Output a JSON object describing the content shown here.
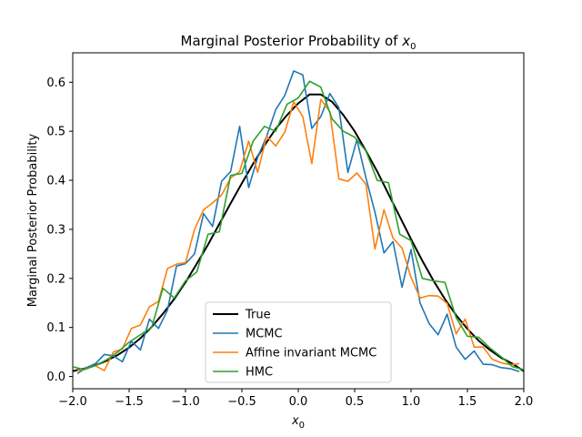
{
  "chart_data": {
    "type": "line",
    "title_main": "Marginal Posterior Probability of ",
    "title_var": "x",
    "title_sub": "0",
    "xlabel_var": "x",
    "xlabel_sub": "0",
    "ylabel": "Marginal Posterior Probability",
    "xlim": [
      -2.0,
      2.0
    ],
    "ylim": [
      -0.025,
      0.66
    ],
    "xticks": [
      -2.0,
      -1.5,
      -1.0,
      -0.5,
      0.0,
      0.5,
      1.0,
      1.5,
      2.0
    ],
    "xtick_labels": [
      "−2.0",
      "−1.5",
      "−1.0",
      "−0.5",
      "0.0",
      "0.5",
      "1.0",
      "1.5",
      "2.0"
    ],
    "yticks": [
      0.0,
      0.1,
      0.2,
      0.3,
      0.4,
      0.5,
      0.6
    ],
    "ytick_labels": [
      "0.0",
      "0.1",
      "0.2",
      "0.3",
      "0.4",
      "0.5",
      "0.6"
    ],
    "grid": false,
    "legend_position": "lower center",
    "series": [
      {
        "name": "True",
        "color": "#000000",
        "x": [
          -2.0,
          -1.9,
          -1.8,
          -1.7,
          -1.6,
          -1.5,
          -1.4,
          -1.3,
          -1.2,
          -1.1,
          -1.0,
          -0.9,
          -0.8,
          -0.7,
          -0.6,
          -0.5,
          -0.4,
          -0.3,
          -0.2,
          -0.1,
          0.0,
          0.1,
          0.2,
          0.3,
          0.4,
          0.5,
          0.6,
          0.7,
          0.8,
          0.9,
          1.0,
          1.1,
          1.2,
          1.3,
          1.4,
          1.5,
          1.6,
          1.7,
          1.8,
          1.9,
          2.0
        ],
        "y": [
          0.011,
          0.016,
          0.023,
          0.032,
          0.044,
          0.059,
          0.078,
          0.101,
          0.128,
          0.158,
          0.192,
          0.23,
          0.269,
          0.311,
          0.353,
          0.394,
          0.434,
          0.471,
          0.505,
          0.533,
          0.557,
          0.575,
          0.575,
          0.56,
          0.533,
          0.5,
          0.46,
          0.418,
          0.372,
          0.326,
          0.28,
          0.236,
          0.195,
          0.158,
          0.125,
          0.097,
          0.073,
          0.054,
          0.038,
          0.026,
          0.011
        ]
      },
      {
        "name": "MCMC",
        "color": "#1f77b4",
        "x": [
          -1.96,
          -1.88,
          -1.8,
          -1.72,
          -1.64,
          -1.56,
          -1.48,
          -1.4,
          -1.32,
          -1.24,
          -1.16,
          -1.08,
          -1.0,
          -0.92,
          -0.84,
          -0.76,
          -0.68,
          -0.6,
          -0.52,
          -0.44,
          -0.36,
          -0.28,
          -0.2,
          -0.12,
          -0.04,
          0.04,
          0.12,
          0.2,
          0.28,
          0.36,
          0.44,
          0.52,
          0.6,
          0.68,
          0.76,
          0.84,
          0.92,
          1.0,
          1.08,
          1.16,
          1.24,
          1.32,
          1.4,
          1.48,
          1.56,
          1.64,
          1.72,
          1.8,
          1.88,
          1.96
        ],
        "y": [
          0.006,
          0.018,
          0.026,
          0.045,
          0.042,
          0.03,
          0.072,
          0.054,
          0.117,
          0.098,
          0.135,
          0.225,
          0.23,
          0.25,
          0.332,
          0.306,
          0.398,
          0.418,
          0.51,
          0.385,
          0.447,
          0.49,
          0.544,
          0.573,
          0.623,
          0.615,
          0.506,
          0.53,
          0.577,
          0.548,
          0.416,
          0.483,
          0.405,
          0.335,
          0.252,
          0.275,
          0.182,
          0.259,
          0.15,
          0.108,
          0.085,
          0.127,
          0.06,
          0.035,
          0.052,
          0.025,
          0.024,
          0.018,
          0.016,
          0.01
        ]
      },
      {
        "name": "Affine invariant MCMC",
        "color": "#ff7f0e",
        "x": [
          -1.96,
          -1.88,
          -1.8,
          -1.72,
          -1.64,
          -1.56,
          -1.48,
          -1.4,
          -1.32,
          -1.24,
          -1.16,
          -1.08,
          -1.0,
          -0.92,
          -0.84,
          -0.76,
          -0.68,
          -0.6,
          -0.52,
          -0.44,
          -0.36,
          -0.28,
          -0.2,
          -0.12,
          -0.04,
          0.04,
          0.12,
          0.2,
          0.28,
          0.36,
          0.44,
          0.52,
          0.6,
          0.68,
          0.76,
          0.84,
          0.92,
          1.0,
          1.08,
          1.16,
          1.24,
          1.32,
          1.4,
          1.48,
          1.56,
          1.64,
          1.72,
          1.8,
          1.88,
          1.96
        ],
        "y": [
          0.012,
          0.016,
          0.022,
          0.012,
          0.05,
          0.056,
          0.098,
          0.105,
          0.142,
          0.153,
          0.22,
          0.229,
          0.232,
          0.3,
          0.34,
          0.354,
          0.37,
          0.405,
          0.418,
          0.48,
          0.416,
          0.49,
          0.47,
          0.498,
          0.56,
          0.53,
          0.434,
          0.565,
          0.54,
          0.403,
          0.398,
          0.415,
          0.392,
          0.26,
          0.34,
          0.282,
          0.262,
          0.202,
          0.16,
          0.165,
          0.164,
          0.149,
          0.087,
          0.117,
          0.06,
          0.06,
          0.035,
          0.028,
          0.024,
          0.026
        ]
      },
      {
        "name": "HMC",
        "color": "#2ca02c",
        "x": [
          -2.0,
          -1.9,
          -1.8,
          -1.7,
          -1.6,
          -1.5,
          -1.4,
          -1.3,
          -1.2,
          -1.1,
          -1.0,
          -0.9,
          -0.8,
          -0.7,
          -0.6,
          -0.5,
          -0.4,
          -0.3,
          -0.2,
          -0.1,
          0.0,
          0.1,
          0.2,
          0.3,
          0.4,
          0.5,
          0.6,
          0.7,
          0.8,
          0.9,
          1.0,
          1.1,
          1.2,
          1.3,
          1.4,
          1.5,
          1.6,
          1.7,
          1.8,
          1.9,
          2.0
        ],
        "y": [
          0.02,
          0.014,
          0.022,
          0.034,
          0.05,
          0.07,
          0.085,
          0.1,
          0.18,
          0.16,
          0.195,
          0.213,
          0.29,
          0.295,
          0.41,
          0.414,
          0.48,
          0.51,
          0.5,
          0.555,
          0.568,
          0.602,
          0.59,
          0.525,
          0.5,
          0.488,
          0.46,
          0.4,
          0.395,
          0.29,
          0.277,
          0.2,
          0.195,
          0.192,
          0.12,
          0.082,
          0.08,
          0.058,
          0.04,
          0.02,
          0.014
        ]
      }
    ]
  }
}
